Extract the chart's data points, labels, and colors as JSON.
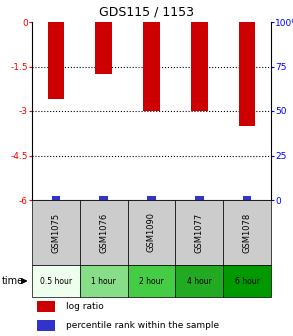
{
  "title": "GDS115 / 1153",
  "samples": [
    "GSM1075",
    "GSM1076",
    "GSM1090",
    "GSM1077",
    "GSM1078"
  ],
  "times": [
    "0.5 hour",
    "1 hour",
    "2 hour",
    "4 hour",
    "6 hour"
  ],
  "log_ratios": [
    -2.6,
    -1.75,
    -3.0,
    -3.0,
    -3.5
  ],
  "ylim_left": [
    -6,
    0
  ],
  "ylim_right": [
    0,
    100
  ],
  "yticks_left": [
    0,
    -1.5,
    -3,
    -4.5,
    -6
  ],
  "ytick_labels_left": [
    "0",
    "-1.5",
    "-3",
    "-4.5",
    "-6"
  ],
  "yticks_right": [
    0,
    25,
    50,
    75,
    100
  ],
  "ytick_labels_right": [
    "0",
    "25",
    "50",
    "75",
    "100%"
  ],
  "bar_color": "#cc0000",
  "percentile_color": "#3333cc",
  "time_colors": [
    "#eeffee",
    "#88dd88",
    "#44cc44",
    "#22aa22",
    "#009900"
  ],
  "background_color": "#ffffff",
  "sample_box_color": "#cccccc",
  "bar_width": 0.35
}
